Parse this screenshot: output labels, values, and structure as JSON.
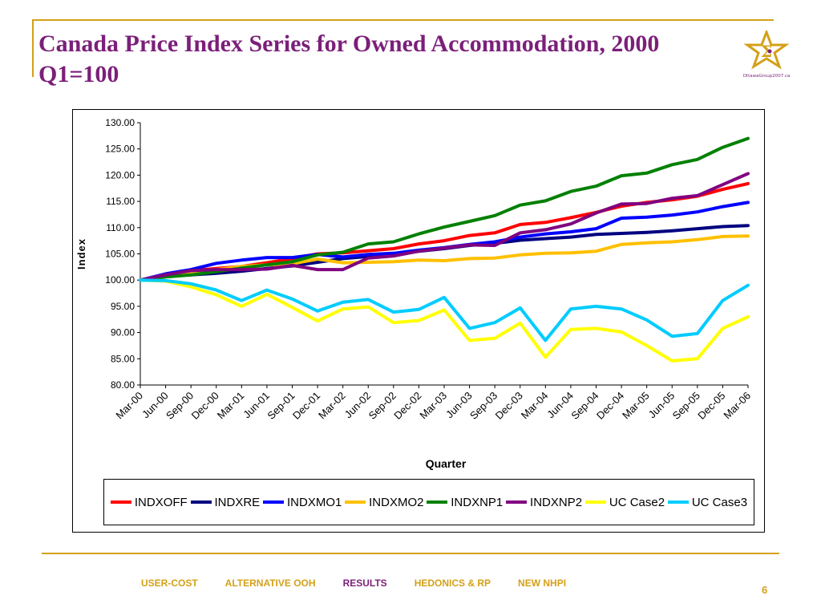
{
  "slide": {
    "title": "Canada Price Index Series for Owned Accommodation, 2000 Q1=100",
    "logo_text": "OttawaGroup2007.ca",
    "page_number": "6"
  },
  "nav": [
    {
      "label": "USER-COST",
      "color": "#d4a017"
    },
    {
      "label": "ALTERNATIVE OOH",
      "color": "#d4a017"
    },
    {
      "label": "RESULTS",
      "color": "#7b1f7a"
    },
    {
      "label": "HEDONICS & RP",
      "color": "#d4a017"
    },
    {
      "label": "NEW NHPI",
      "color": "#d4a017"
    }
  ],
  "chart_data": {
    "type": "line",
    "xlabel": "Quarter",
    "ylabel": "Index",
    "ylim": [
      80,
      130
    ],
    "yticks": [
      "130.00",
      "125.00",
      "120.00",
      "115.00",
      "110.00",
      "105.00",
      "100.00",
      "95.00",
      "90.00",
      "85.00",
      "80.00"
    ],
    "grid": false,
    "legend_position": "bottom",
    "categories": [
      "Mar-00",
      "Jun-00",
      "Sep-00",
      "Dec-00",
      "Mar-01",
      "Jun-01",
      "Sep-01",
      "Dec-01",
      "Mar-02",
      "Jun-02",
      "Sep-02",
      "Dec-02",
      "Mar-03",
      "Jun-03",
      "Sep-03",
      "Dec-03",
      "Mar-04",
      "Jun-04",
      "Sep-04",
      "Dec-04",
      "Mar-05",
      "Jun-05",
      "Sep-05",
      "Dec-05",
      "Mar-06"
    ],
    "series": [
      {
        "name": "INDXOFF",
        "color": "#ff0000",
        "values": [
          100,
          101,
          101.8,
          102.2,
          102.6,
          103.3,
          104.1,
          105,
          105.2,
          105.6,
          106,
          106.9,
          107.5,
          108.5,
          109,
          110.6,
          111,
          111.9,
          112.9,
          114.1,
          114.8,
          115.3,
          116,
          117.3,
          118.4
        ]
      },
      {
        "name": "INDXRE",
        "color": "#000080",
        "values": [
          100,
          101,
          101,
          101.3,
          101.7,
          102.2,
          102.7,
          103.4,
          104.1,
          104.5,
          104.8,
          105.5,
          106,
          106.6,
          107,
          107.6,
          107.9,
          108.2,
          108.7,
          108.9,
          109.1,
          109.4,
          109.8,
          110.2,
          110.4
        ]
      },
      {
        "name": "INDXMO1",
        "color": "#0000ff",
        "values": [
          100,
          101.2,
          102,
          103.2,
          103.8,
          104.3,
          104.3,
          104.9,
          104.4,
          104.9,
          105.1,
          105.7,
          106.2,
          106.8,
          107.3,
          108.2,
          108.8,
          109.2,
          109.8,
          111.8,
          112,
          112.4,
          113,
          114,
          114.8
        ]
      },
      {
        "name": "INDXMO2",
        "color": "#ffc000",
        "values": [
          100,
          101,
          101.6,
          102,
          102.6,
          102.9,
          103.1,
          104,
          103.3,
          103.4,
          103.5,
          103.8,
          103.7,
          104.1,
          104.2,
          104.8,
          105.1,
          105.2,
          105.5,
          106.8,
          107.1,
          107.3,
          107.7,
          108.3,
          108.4
        ]
      },
      {
        "name": "INDXNP1",
        "color": "#008000",
        "values": [
          100,
          100.6,
          101,
          101.6,
          102.3,
          102.9,
          103.5,
          104.8,
          105.3,
          106.9,
          107.3,
          108.8,
          110.1,
          111.2,
          112.3,
          114.3,
          115.1,
          116.9,
          117.9,
          119.9,
          120.4,
          122,
          123,
          125.3,
          127
        ]
      },
      {
        "name": "INDXNP2",
        "color": "#800080",
        "values": [
          100,
          101,
          101.8,
          102,
          102,
          102.1,
          102.8,
          102,
          102,
          104.2,
          104.6,
          105.5,
          106.1,
          106.7,
          106.6,
          109,
          109.6,
          110.7,
          112.8,
          114.5,
          114.6,
          115.6,
          116.1,
          118.2,
          120.3
        ]
      },
      {
        "name": "UC Case2",
        "color": "#ffff00",
        "values": [
          100,
          99.8,
          98.7,
          97.2,
          95,
          97.3,
          94.8,
          92.2,
          94.5,
          94.9,
          91.9,
          92.3,
          94.3,
          88.5,
          88.9,
          91.8,
          85.3,
          90.6,
          90.8,
          90.1,
          87.5,
          84.6,
          85,
          90.8,
          93
        ]
      },
      {
        "name": "UC Case3",
        "color": "#00ccff",
        "values": [
          100,
          99.9,
          99.3,
          98.1,
          96.1,
          98.1,
          96.4,
          94.1,
          95.8,
          96.3,
          93.9,
          94.4,
          96.7,
          90.8,
          91.9,
          94.7,
          88.5,
          94.5,
          95,
          94.5,
          92.4,
          89.3,
          89.8,
          96.1,
          99
        ]
      }
    ]
  }
}
